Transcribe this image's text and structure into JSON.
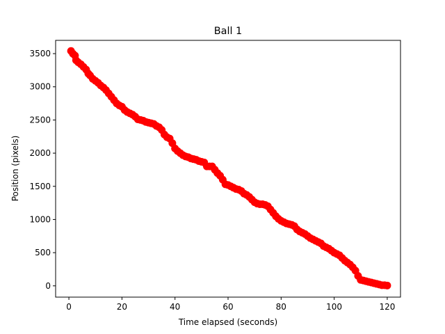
{
  "chart_data": {
    "type": "scatter",
    "title": "Ball 1",
    "xlabel": "Time elapsed (seconds)",
    "ylabel": "Position (pixels)",
    "xlim": [
      -5,
      125
    ],
    "ylim": [
      -170,
      3700
    ],
    "xticks": [
      0,
      20,
      40,
      60,
      80,
      100,
      120
    ],
    "yticks": [
      0,
      500,
      1000,
      1500,
      2000,
      2500,
      3000,
      3500
    ],
    "xtick_labels": [
      "0",
      "20",
      "40",
      "60",
      "80",
      "100",
      "120"
    ],
    "ytick_labels": [
      "0",
      "500",
      "1000",
      "1500",
      "2000",
      "2500",
      "3000",
      "3500"
    ],
    "grid": false,
    "marker_color": "#ff0000",
    "series": [
      {
        "x": [
          0.8,
          1.5,
          2.3,
          2.7,
          3.5,
          4.5,
          5.5,
          6.5,
          7.3,
          8.0,
          9.0,
          10.0,
          11.0,
          12.0,
          13.0,
          14.0,
          15.0,
          16.0,
          17.0,
          18.0,
          19.0,
          20.0,
          21.0,
          22.0,
          23.0,
          24.0,
          25.0,
          26.0,
          27.0,
          28.0,
          29.0,
          30.0,
          31.0,
          32.0,
          33.0,
          34.0,
          35.0,
          36.0,
          37.0,
          38.0,
          39.0,
          40.0,
          41.0,
          42.0,
          43.0,
          44.0,
          45.0,
          46.0,
          47.0,
          48.0,
          49.0,
          50.0,
          51.0,
          52.0,
          53.0,
          54.0,
          55.0,
          56.0,
          57.0,
          58.0,
          59.0,
          60.0,
          61.0,
          62.0,
          63.0,
          64.0,
          65.0,
          66.0,
          67.0,
          68.0,
          69.0,
          70.0,
          71.0,
          72.0,
          73.0,
          74.0,
          75.0,
          76.0,
          77.0,
          78.0,
          79.0,
          80.0,
          81.0,
          82.0,
          83.0,
          84.0,
          85.0,
          86.0,
          87.0,
          88.0,
          89.0,
          90.0,
          91.0,
          92.0,
          93.0,
          94.0,
          95.0,
          96.0,
          97.0,
          98.0,
          99.0,
          100.0,
          101.0,
          102.0,
          103.0,
          104.0,
          105.0,
          106.0,
          107.0,
          108.0,
          109.0,
          110.0,
          111.0,
          112.0,
          113.0,
          114.0,
          115.0,
          116.0,
          117.0,
          118.0,
          119.0,
          120.0
        ],
        "y": [
          3540,
          3500,
          3470,
          3400,
          3370,
          3340,
          3300,
          3260,
          3200,
          3170,
          3120,
          3090,
          3060,
          3020,
          2990,
          2950,
          2900,
          2850,
          2800,
          2750,
          2720,
          2700,
          2650,
          2620,
          2600,
          2580,
          2550,
          2510,
          2500,
          2490,
          2470,
          2460,
          2450,
          2440,
          2410,
          2390,
          2350,
          2280,
          2240,
          2220,
          2150,
          2070,
          2030,
          2000,
          1970,
          1950,
          1940,
          1920,
          1910,
          1900,
          1880,
          1870,
          1860,
          1800,
          1800,
          1800,
          1750,
          1700,
          1660,
          1600,
          1530,
          1520,
          1500,
          1480,
          1460,
          1450,
          1430,
          1390,
          1370,
          1340,
          1300,
          1260,
          1240,
          1230,
          1230,
          1220,
          1200,
          1150,
          1100,
          1050,
          1010,
          980,
          960,
          940,
          930,
          920,
          900,
          850,
          820,
          800,
          780,
          750,
          720,
          700,
          680,
          660,
          640,
          600,
          580,
          560,
          530,
          500,
          480,
          460,
          420,
          380,
          350,
          320,
          280,
          230,
          150,
          90,
          80,
          70,
          60,
          50,
          40,
          30,
          20,
          10,
          10,
          5
        ]
      }
    ]
  }
}
